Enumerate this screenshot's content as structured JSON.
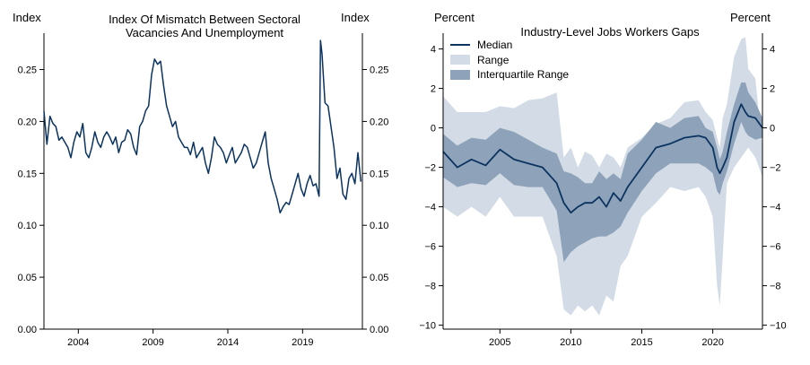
{
  "colors": {
    "line": "#0b3360",
    "range_fill": "#d3dce6",
    "iqr_fill": "#8ea3ba",
    "axis": "#000000"
  },
  "chart_data": [
    {
      "type": "line",
      "title": "Index Of Mismatch Between Sectoral Vacancies And Unemployment",
      "title_lines": [
        "Index Of Mismatch Between Sectoral",
        "Vacancies And Unemployment"
      ],
      "ylabel_left": "Index",
      "ylabel_right": "Index",
      "xlim": [
        2001.7,
        2023.0
      ],
      "ylim": [
        0.0,
        0.285
      ],
      "x_ticks": [
        2004,
        2009,
        2014,
        2019
      ],
      "x_tick_labels": [
        "2004",
        "2009",
        "2014",
        "2019"
      ],
      "y_ticks": [
        0.0,
        0.05,
        0.1,
        0.15,
        0.2,
        0.25
      ],
      "y_tick_labels": [
        "0.00",
        "0.05",
        "0.10",
        "0.15",
        "0.20",
        "0.25"
      ],
      "series": [
        {
          "name": "Mismatch Index",
          "x": [
            2001.7,
            2001.9,
            2002.1,
            2002.3,
            2002.5,
            2002.7,
            2002.9,
            2003.1,
            2003.3,
            2003.5,
            2003.7,
            2003.9,
            2004.1,
            2004.3,
            2004.5,
            2004.7,
            2004.9,
            2005.1,
            2005.3,
            2005.5,
            2005.7,
            2005.9,
            2006.1,
            2006.3,
            2006.5,
            2006.7,
            2006.9,
            2007.1,
            2007.3,
            2007.5,
            2007.7,
            2007.9,
            2008.1,
            2008.3,
            2008.5,
            2008.7,
            2008.9,
            2009.1,
            2009.3,
            2009.5,
            2009.7,
            2009.9,
            2010.1,
            2010.3,
            2010.5,
            2010.7,
            2010.9,
            2011.1,
            2011.3,
            2011.5,
            2011.7,
            2011.9,
            2012.1,
            2012.3,
            2012.5,
            2012.7,
            2012.9,
            2013.1,
            2013.3,
            2013.5,
            2013.7,
            2013.9,
            2014.1,
            2014.3,
            2014.5,
            2014.7,
            2014.9,
            2015.1,
            2015.3,
            2015.5,
            2015.7,
            2015.9,
            2016.1,
            2016.3,
            2016.5,
            2016.7,
            2016.9,
            2017.1,
            2017.3,
            2017.5,
            2017.7,
            2017.9,
            2018.1,
            2018.3,
            2018.5,
            2018.7,
            2018.9,
            2019.1,
            2019.3,
            2019.5,
            2019.7,
            2019.9,
            2020.1,
            2020.2,
            2020.3,
            2020.5,
            2020.7,
            2020.9,
            2021.1,
            2021.3,
            2021.5,
            2021.7,
            2021.9,
            2022.1,
            2022.3,
            2022.5,
            2022.7,
            2022.9
          ],
          "y": [
            0.21,
            0.178,
            0.205,
            0.198,
            0.195,
            0.182,
            0.185,
            0.18,
            0.175,
            0.165,
            0.18,
            0.19,
            0.185,
            0.198,
            0.17,
            0.165,
            0.175,
            0.19,
            0.18,
            0.175,
            0.185,
            0.19,
            0.185,
            0.178,
            0.185,
            0.17,
            0.18,
            0.182,
            0.192,
            0.188,
            0.175,
            0.168,
            0.195,
            0.2,
            0.21,
            0.215,
            0.245,
            0.26,
            0.255,
            0.258,
            0.235,
            0.215,
            0.205,
            0.195,
            0.2,
            0.185,
            0.18,
            0.175,
            0.175,
            0.168,
            0.18,
            0.165,
            0.17,
            0.175,
            0.16,
            0.15,
            0.165,
            0.185,
            0.178,
            0.175,
            0.17,
            0.16,
            0.168,
            0.175,
            0.16,
            0.165,
            0.17,
            0.178,
            0.175,
            0.165,
            0.155,
            0.16,
            0.17,
            0.18,
            0.19,
            0.16,
            0.145,
            0.135,
            0.125,
            0.112,
            0.118,
            0.122,
            0.12,
            0.13,
            0.14,
            0.15,
            0.135,
            0.128,
            0.14,
            0.148,
            0.138,
            0.14,
            0.128,
            0.278,
            0.265,
            0.218,
            0.215,
            0.195,
            0.175,
            0.145,
            0.155,
            0.13,
            0.125,
            0.145,
            0.15,
            0.14,
            0.17,
            0.142
          ]
        }
      ]
    },
    {
      "type": "area",
      "title": "Industry-Level Jobs Workers Gaps",
      "ylabel_left": "Percent",
      "ylabel_right": "Percent",
      "xlim": [
        2001.0,
        2023.5
      ],
      "ylim": [
        -10.2,
        4.8
      ],
      "x_ticks": [
        2005,
        2010,
        2015,
        2020
      ],
      "x_tick_labels": [
        "2005",
        "2010",
        "2015",
        "2020"
      ],
      "y_ticks": [
        4,
        2,
        0,
        -2,
        -4,
        -6,
        -8,
        -10
      ],
      "y_tick_labels": [
        "4",
        "2",
        "0",
        "−2",
        "−4",
        "−6",
        "−8",
        "−10"
      ],
      "legend": [
        "Median",
        "Range",
        "Interquartile Range"
      ],
      "x": [
        2001.0,
        2002.0,
        2003.0,
        2004.0,
        2005.0,
        2006.0,
        2007.0,
        2008.0,
        2009.0,
        2009.5,
        2010.0,
        2010.5,
        2011.0,
        2011.5,
        2012.0,
        2012.5,
        2013.0,
        2013.5,
        2014.0,
        2015.0,
        2016.0,
        2017.0,
        2018.0,
        2019.0,
        2019.5,
        2020.0,
        2020.3,
        2020.5,
        2020.7,
        2021.0,
        2021.5,
        2022.0,
        2022.3,
        2022.5,
        2023.0,
        2023.5
      ],
      "series": [
        {
          "name": "Median",
          "values": [
            -1.2,
            -2.0,
            -1.6,
            -1.9,
            -1.1,
            -1.6,
            -1.8,
            -2.0,
            -2.8,
            -3.8,
            -4.3,
            -4.0,
            -3.8,
            -3.8,
            -3.5,
            -4.0,
            -3.3,
            -3.7,
            -3.0,
            -2.0,
            -1.0,
            -0.8,
            -0.5,
            -0.4,
            -0.5,
            -1.0,
            -2.0,
            -2.3,
            -2.0,
            -1.5,
            0.3,
            1.2,
            0.8,
            0.6,
            0.5,
            0.0
          ]
        },
        {
          "name": "Range Upper",
          "values": [
            1.6,
            0.8,
            0.8,
            0.8,
            1.1,
            1.0,
            1.4,
            1.5,
            1.8,
            -1.5,
            -1.0,
            -2.0,
            -1.2,
            -1.4,
            -2.0,
            -1.3,
            -1.5,
            -2.0,
            -1.0,
            -0.5,
            0.2,
            0.5,
            1.3,
            1.4,
            0.8,
            0.4,
            -0.5,
            -1.0,
            0.5,
            1.2,
            3.6,
            4.5,
            4.6,
            3.0,
            2.5,
            -1.0
          ]
        },
        {
          "name": "Range Lower",
          "values": [
            -4.0,
            -4.5,
            -4.0,
            -4.5,
            -3.5,
            -4.5,
            -4.5,
            -4.5,
            -6.5,
            -9.2,
            -9.5,
            -9.0,
            -9.3,
            -9.0,
            -9.5,
            -8.5,
            -8.8,
            -7.0,
            -6.5,
            -4.5,
            -3.8,
            -3.0,
            -3.2,
            -3.0,
            -3.5,
            -4.5,
            -8.0,
            -9.0,
            -6.5,
            -2.8,
            -2.0,
            -1.5,
            -1.2,
            -1.0,
            -1.5,
            -2.5
          ]
        },
        {
          "name": "IQR Upper",
          "values": [
            -0.3,
            -0.9,
            -0.5,
            -0.6,
            0.0,
            -0.2,
            -0.6,
            -1.0,
            -1.3,
            -2.2,
            -2.3,
            -2.5,
            -2.8,
            -2.8,
            -2.2,
            -2.6,
            -2.3,
            -2.6,
            -1.3,
            -0.6,
            0.3,
            0.0,
            0.5,
            0.6,
            0.0,
            -0.2,
            -1.0,
            -1.6,
            -1.2,
            -0.2,
            1.2,
            2.3,
            2.3,
            1.8,
            1.3,
            0.5
          ]
        },
        {
          "name": "IQR Lower",
          "values": [
            -2.5,
            -3.0,
            -2.8,
            -2.9,
            -2.3,
            -2.9,
            -3.0,
            -3.0,
            -4.2,
            -6.8,
            -6.3,
            -6.0,
            -5.8,
            -5.6,
            -5.5,
            -5.5,
            -5.3,
            -5.0,
            -4.3,
            -3.2,
            -2.3,
            -1.8,
            -1.8,
            -1.8,
            -2.0,
            -2.3,
            -3.2,
            -3.4,
            -2.8,
            -2.2,
            -0.8,
            0.3,
            -0.2,
            -0.4,
            -0.6,
            -0.5
          ]
        }
      ]
    }
  ]
}
